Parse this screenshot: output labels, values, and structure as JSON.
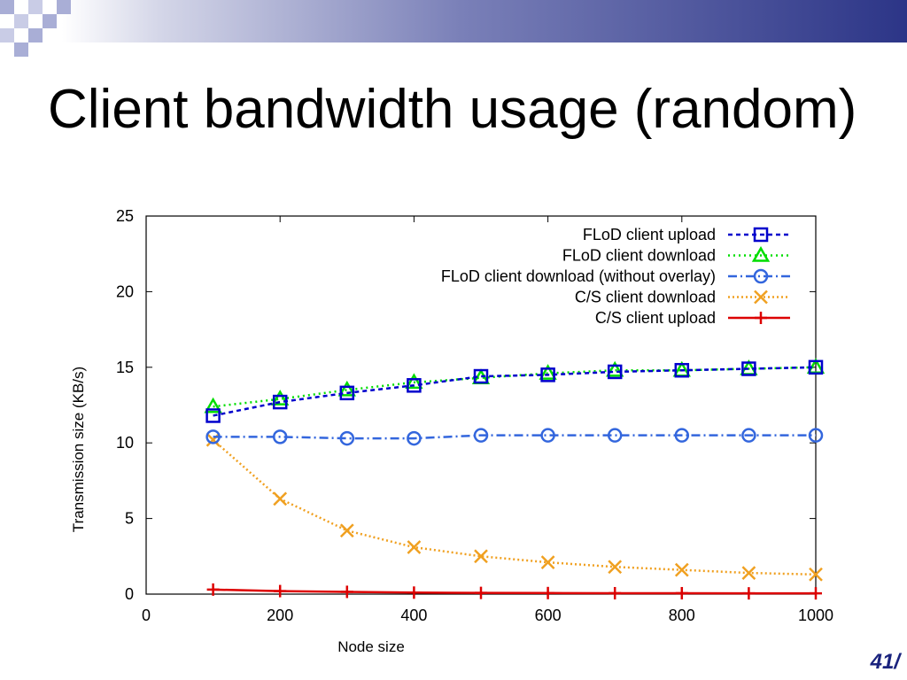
{
  "slide": {
    "title": "Client bandwidth usage (random)",
    "page_number": "41/"
  },
  "colors": {
    "band_dark": "#2c3587",
    "checker": "#a9aed6",
    "page_number": "#1a237e"
  },
  "chart_data": {
    "type": "line",
    "title": "",
    "xlabel": "Node size",
    "ylabel": "Transmission size (KB/s)",
    "xlim": [
      0,
      1000
    ],
    "ylim": [
      0,
      25
    ],
    "xticks": [
      0,
      200,
      400,
      600,
      800,
      1000
    ],
    "yticks": [
      0,
      5,
      10,
      15,
      20,
      25
    ],
    "grid": false,
    "legend_position": "top-right",
    "x": [
      100,
      200,
      300,
      400,
      500,
      600,
      700,
      800,
      900,
      1000
    ],
    "series": [
      {
        "name": "FLoD client upload",
        "color": "#0000cc",
        "dash": "5,4",
        "marker": "square",
        "values": [
          11.8,
          12.7,
          13.3,
          13.8,
          14.4,
          14.5,
          14.7,
          14.8,
          14.9,
          15.0
        ]
      },
      {
        "name": "FLoD client download",
        "color": "#00dd00",
        "dash": "2,4",
        "marker": "triangle",
        "values": [
          12.4,
          12.9,
          13.5,
          14.0,
          14.3,
          14.6,
          14.8,
          14.8,
          14.9,
          15.0
        ]
      },
      {
        "name": "FLoD client download (without overlay)",
        "color": "#3366dd",
        "dash": "10,4,2,4",
        "marker": "circle",
        "values": [
          10.4,
          10.4,
          10.3,
          10.3,
          10.5,
          10.5,
          10.5,
          10.5,
          10.5,
          10.5
        ]
      },
      {
        "name": "C/S client download",
        "color": "#f0a020",
        "dash": "2,3",
        "marker": "x",
        "values": [
          10.2,
          6.3,
          4.2,
          3.1,
          2.5,
          2.1,
          1.8,
          1.6,
          1.4,
          1.3
        ]
      },
      {
        "name": "C/S client upload",
        "color": "#dd0000",
        "dash": "",
        "marker": "plus",
        "values": [
          0.3,
          0.2,
          0.15,
          0.1,
          0.08,
          0.07,
          0.06,
          0.06,
          0.05,
          0.05
        ]
      }
    ]
  }
}
